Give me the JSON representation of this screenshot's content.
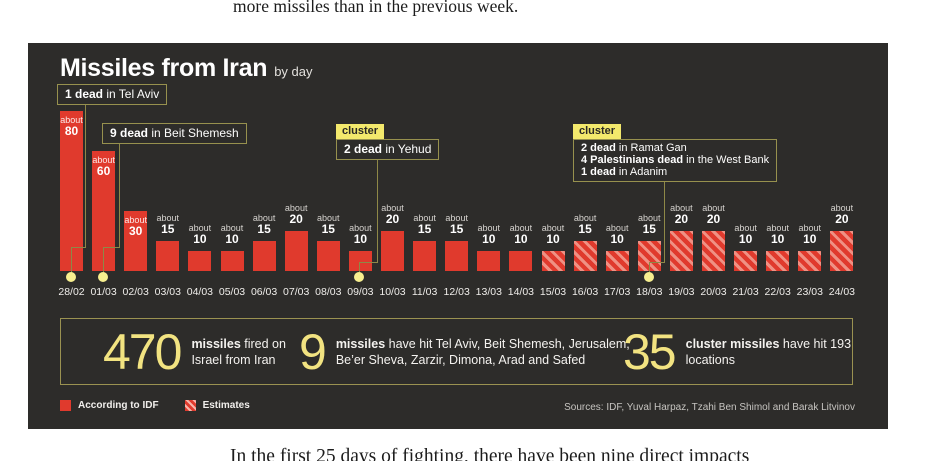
{
  "article": {
    "top_text": "more missiles than in the previous week.",
    "bottom_text": "In the first 25 days of fighting, there have been nine direct impacts"
  },
  "chart_data": {
    "type": "bar",
    "title": "Missiles from Iran",
    "subtitle": "by day",
    "value_prefix": "about",
    "categories": [
      "28/02",
      "01/03",
      "02/03",
      "03/03",
      "04/03",
      "05/03",
      "06/03",
      "07/03",
      "08/03",
      "09/03",
      "10/03",
      "11/03",
      "12/03",
      "13/03",
      "14/03",
      "15/03",
      "16/03",
      "17/03",
      "18/03",
      "19/03",
      "20/03",
      "21/03",
      "22/03",
      "23/03",
      "24/03"
    ],
    "values": [
      80,
      60,
      30,
      15,
      10,
      10,
      15,
      20,
      15,
      10,
      20,
      15,
      15,
      10,
      10,
      10,
      15,
      10,
      15,
      20,
      20,
      10,
      10,
      10,
      20
    ],
    "estimates_start_index": 15,
    "grid": false,
    "xlabel": "",
    "ylabel": "",
    "legend": [
      {
        "label": "According to IDF",
        "style": "solid"
      },
      {
        "label": "Estimates",
        "style": "hatch"
      }
    ],
    "annotations": [
      {
        "date": "28/02",
        "tag": "",
        "lines": [
          {
            "bold": "1 dead",
            "rest": " in Tel Aviv"
          }
        ]
      },
      {
        "date": "01/03",
        "tag": "",
        "lines": [
          {
            "bold": "9 dead",
            "rest": " in Beit Shemesh"
          }
        ]
      },
      {
        "date": "09/03",
        "tag": "cluster",
        "lines": [
          {
            "bold": "2 dead",
            "rest": " in Yehud"
          }
        ]
      },
      {
        "date": "18/03",
        "tag": "cluster",
        "lines": [
          {
            "bold": "2 dead",
            "rest": " in Ramat Gan"
          },
          {
            "bold": "4 Palestinians dead",
            "rest": " in the West Bank"
          },
          {
            "bold": "1 dead",
            "rest": " in Adanim"
          }
        ]
      }
    ],
    "summary": [
      {
        "number": "470",
        "bold": "missiles",
        "rest": " fired on Israel from Iran"
      },
      {
        "number": "9",
        "bold": "missiles",
        "rest": " have hit Tel Aviv, Beit Shemesh, Jerusalem, Be’er Sheva, Zarzir, Dimona, Arad and Safed"
      },
      {
        "number": "35",
        "bold": "cluster missiles",
        "rest": " have hit 193 locations"
      }
    ],
    "sources": "Sources: IDF, Yuval Harpaz, Tzahi Ben Shimol and Barak Litvinov"
  },
  "colors": {
    "panel_bg": "#2d2c2a",
    "bar_red": "#e03a2d",
    "hatch_light": "#ef9184",
    "accent_yellow": "#f2e381",
    "connector": "#8e8847",
    "tag_bg": "#f3e96c",
    "dot": "#f7ef8f"
  }
}
